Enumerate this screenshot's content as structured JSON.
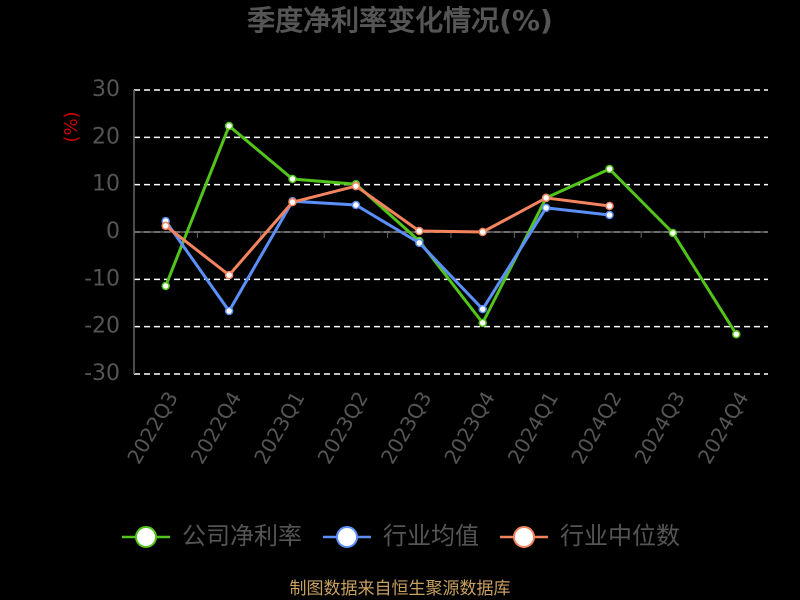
{
  "chart_data": {
    "type": "line",
    "title": "季度净利率变化情况(%)",
    "y_label": "(%)",
    "source": "制图数据来自恒生聚源数据库",
    "categories": [
      "2022Q3",
      "2022Q4",
      "2023Q1",
      "2023Q2",
      "2023Q3",
      "2023Q4",
      "2024Q1",
      "2024Q2",
      "2024Q3",
      "2024Q4"
    ],
    "series": [
      {
        "name": "公司净利率",
        "color": "#52c41a",
        "values": [
          -11.4,
          22.4,
          11.2,
          10.1,
          -1.9,
          -19.2,
          7.2,
          13.3,
          -0.2,
          -21.6
        ]
      },
      {
        "name": "行业均值",
        "color": "#5b8ff9",
        "values": [
          2.3,
          -16.7,
          6.5,
          5.7,
          -2.3,
          -16.3,
          5.1,
          3.6,
          null,
          null
        ]
      },
      {
        "name": "行业中位数",
        "color": "#f4845f",
        "values": [
          1.3,
          -9.1,
          6.3,
          9.7,
          0.2,
          0,
          7.2,
          5.5,
          null,
          null
        ]
      }
    ],
    "ylim": [
      -30,
      30
    ],
    "yticks": [
      -30,
      -20,
      -10,
      0,
      10,
      20,
      30
    ],
    "grid": true
  }
}
